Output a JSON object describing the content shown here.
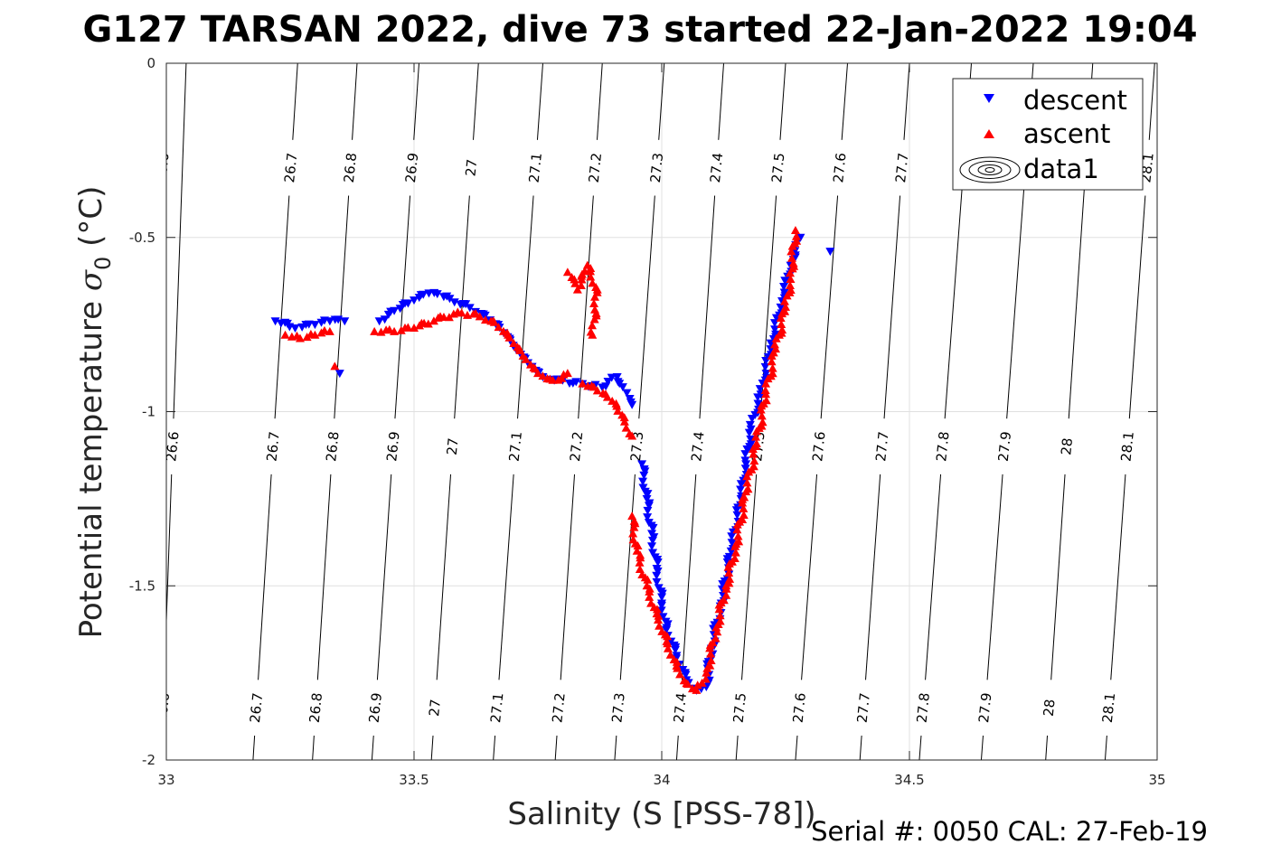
{
  "chart_data": {
    "type": "scatter",
    "title": "G127 TARSAN 2022, dive 73 started 22-Jan-2022 19:04",
    "xlabel": "Salinity (S [PSS-78])",
    "ylabel_main": "Potential temperature ",
    "ylabel_sigma": "σ",
    "ylabel_sub": "0",
    "ylabel_unit": " (°C)",
    "footer": "Serial #: 0050  CAL: 27-Feb-19",
    "xlim": [
      33,
      35
    ],
    "ylim": [
      -2,
      0
    ],
    "x_ticks": [
      33,
      33.5,
      34,
      34.5,
      35
    ],
    "x_tick_labels": [
      "33",
      "33.5",
      "34",
      "34.5",
      "35"
    ],
    "y_ticks": [
      0,
      -0.5,
      -1,
      -1.5,
      -2
    ],
    "y_tick_labels": [
      "0",
      "-0.5",
      "-1",
      "-1.5",
      "-2"
    ],
    "grid": true,
    "legend_position": "top-right",
    "legend": [
      "descent",
      "ascent",
      "data1"
    ],
    "colors": {
      "descent": "#0000ff",
      "ascent": "#ff0000",
      "contour": "#000000",
      "grid": "#e0e0e0"
    },
    "isopycnal_labels": [
      "26.6",
      "26.7",
      "26.8",
      "26.9",
      "27",
      "27.1",
      "27.2",
      "27.3",
      "27.4",
      "27.5",
      "27.6",
      "27.7",
      "27.8",
      "27.9",
      "28",
      "28.1"
    ],
    "isopycnals": [
      {
        "label": "26.6",
        "s0": 33.04,
        "s2": 32.99,
        "labeled_at": [
          -1.1,
          -1.85
        ]
      },
      {
        "label": "26.6",
        "s0": 33.0,
        "s2": 32.95,
        "labeled_at": [
          -0.3
        ]
      },
      {
        "label": "26.7",
        "s0": 33.265,
        "s2": 33.175,
        "labeled_at": [
          -0.3,
          -1.1,
          -1.85
        ]
      },
      {
        "label": "26.8",
        "s0": 33.385,
        "s2": 33.295,
        "labeled_at": [
          -0.3,
          -1.1,
          -1.85
        ]
      },
      {
        "label": "26.9",
        "s0": 33.51,
        "s2": 33.415,
        "labeled_at": [
          -0.3,
          -1.1,
          -1.85
        ]
      },
      {
        "label": "27",
        "s0": 33.63,
        "s2": 33.535,
        "labeled_at": [
          -0.3,
          -1.1,
          -1.85
        ]
      },
      {
        "label": "27.1",
        "s0": 33.76,
        "s2": 33.66,
        "labeled_at": [
          -0.3,
          -1.1,
          -1.85
        ]
      },
      {
        "label": "27.2",
        "s0": 33.88,
        "s2": 33.785,
        "labeled_at": [
          -0.3,
          -1.1,
          -1.85
        ]
      },
      {
        "label": "27.3",
        "s0": 34.005,
        "s2": 33.905,
        "labeled_at": [
          -0.3,
          -1.1,
          -1.85
        ]
      },
      {
        "label": "27.4",
        "s0": 34.125,
        "s2": 34.03,
        "labeled_at": [
          -0.3,
          -1.1,
          -1.85
        ]
      },
      {
        "label": "27.5",
        "s0": 34.25,
        "s2": 34.15,
        "labeled_at": [
          -0.3,
          -1.1,
          -1.85
        ]
      },
      {
        "label": "27.6",
        "s0": 34.375,
        "s2": 34.27,
        "labeled_at": [
          -0.3,
          -1.1,
          -1.85
        ]
      },
      {
        "label": "27.7",
        "s0": 34.5,
        "s2": 34.4,
        "labeled_at": [
          -0.3,
          -1.1,
          -1.85
        ]
      },
      {
        "label": "27.8",
        "s0": 34.625,
        "s2": 34.52,
        "labeled_at": [
          -1.1,
          -1.85
        ]
      },
      {
        "label": "27.9",
        "s0": 34.75,
        "s2": 34.645,
        "labeled_at": [
          -1.1,
          -1.85
        ]
      },
      {
        "label": "28",
        "s0": 34.87,
        "s2": 34.775,
        "labeled_at": [
          -1.1,
          -1.85
        ]
      },
      {
        "label": "28.1",
        "s0": 34.995,
        "s2": 34.895,
        "labeled_at": [
          -0.3,
          -1.1,
          -1.85
        ]
      }
    ],
    "series": [
      {
        "name": "descent",
        "marker": "triangle-down",
        "segments": [
          [
            [
              33.22,
              -0.74
            ],
            [
              33.26,
              -0.76
            ],
            [
              33.3,
              -0.75
            ],
            [
              33.33,
              -0.74
            ],
            [
              33.36,
              -0.74
            ]
          ],
          [
            [
              33.35,
              -0.89
            ]
          ],
          [
            [
              33.43,
              -0.74
            ],
            [
              33.46,
              -0.71
            ],
            [
              33.5,
              -0.68
            ],
            [
              33.53,
              -0.66
            ],
            [
              33.56,
              -0.67
            ],
            [
              33.6,
              -0.69
            ],
            [
              33.64,
              -0.72
            ],
            [
              33.67,
              -0.75
            ],
            [
              33.7,
              -0.81
            ],
            [
              33.73,
              -0.86
            ],
            [
              33.76,
              -0.9
            ],
            [
              33.8,
              -0.91
            ],
            [
              33.84,
              -0.92
            ],
            [
              33.88,
              -0.93
            ],
            [
              33.91,
              -0.9
            ],
            [
              33.94,
              -0.98
            ]
          ],
          [
            [
              33.96,
              -1.15
            ],
            [
              33.97,
              -1.25
            ],
            [
              33.98,
              -1.35
            ],
            [
              33.99,
              -1.45
            ],
            [
              34.0,
              -1.55
            ],
            [
              34.01,
              -1.62
            ],
            [
              34.03,
              -1.7
            ],
            [
              34.05,
              -1.77
            ],
            [
              34.07,
              -1.8
            ],
            [
              34.09,
              -1.79
            ],
            [
              34.1,
              -1.68
            ],
            [
              34.12,
              -1.55
            ],
            [
              34.14,
              -1.4
            ],
            [
              34.16,
              -1.25
            ],
            [
              34.17,
              -1.15
            ],
            [
              34.18,
              -1.05
            ],
            [
              34.2,
              -0.95
            ],
            [
              34.22,
              -0.82
            ],
            [
              34.24,
              -0.7
            ],
            [
              34.26,
              -0.58
            ],
            [
              34.28,
              -0.5
            ]
          ],
          [
            [
              34.34,
              -0.54
            ]
          ]
        ]
      },
      {
        "name": "ascent",
        "marker": "triangle-up",
        "segments": [
          [
            [
              33.24,
              -0.78
            ],
            [
              33.27,
              -0.79
            ],
            [
              33.3,
              -0.78
            ],
            [
              33.33,
              -0.77
            ]
          ],
          [
            [
              33.34,
              -0.87
            ]
          ],
          [
            [
              33.42,
              -0.77
            ],
            [
              33.46,
              -0.77
            ],
            [
              33.5,
              -0.76
            ],
            [
              33.54,
              -0.74
            ],
            [
              33.58,
              -0.72
            ],
            [
              33.62,
              -0.72
            ],
            [
              33.66,
              -0.74
            ],
            [
              33.69,
              -0.78
            ],
            [
              33.72,
              -0.84
            ],
            [
              33.75,
              -0.89
            ],
            [
              33.78,
              -0.91
            ],
            [
              33.81,
              -0.89
            ]
          ],
          [
            [
              33.81,
              -0.6
            ],
            [
              33.83,
              -0.65
            ],
            [
              33.85,
              -0.58
            ],
            [
              33.87,
              -0.65
            ],
            [
              33.86,
              -0.78
            ]
          ],
          [
            [
              33.84,
              -0.92
            ],
            [
              33.87,
              -0.94
            ],
            [
              33.9,
              -0.97
            ],
            [
              33.92,
              -1.01
            ],
            [
              33.94,
              -1.07
            ]
          ],
          [
            [
              33.94,
              -1.3
            ],
            [
              33.95,
              -1.4
            ],
            [
              33.97,
              -1.5
            ],
            [
              33.99,
              -1.58
            ],
            [
              34.01,
              -1.66
            ],
            [
              34.03,
              -1.73
            ],
            [
              34.05,
              -1.78
            ],
            [
              34.07,
              -1.8
            ],
            [
              34.09,
              -1.75
            ],
            [
              34.11,
              -1.62
            ],
            [
              34.13,
              -1.5
            ],
            [
              34.15,
              -1.38
            ],
            [
              34.17,
              -1.23
            ],
            [
              34.19,
              -1.1
            ],
            [
              34.21,
              -0.95
            ],
            [
              34.23,
              -0.82
            ],
            [
              34.25,
              -0.7
            ],
            [
              34.26,
              -0.62
            ],
            [
              34.27,
              -0.48
            ]
          ]
        ]
      }
    ]
  }
}
